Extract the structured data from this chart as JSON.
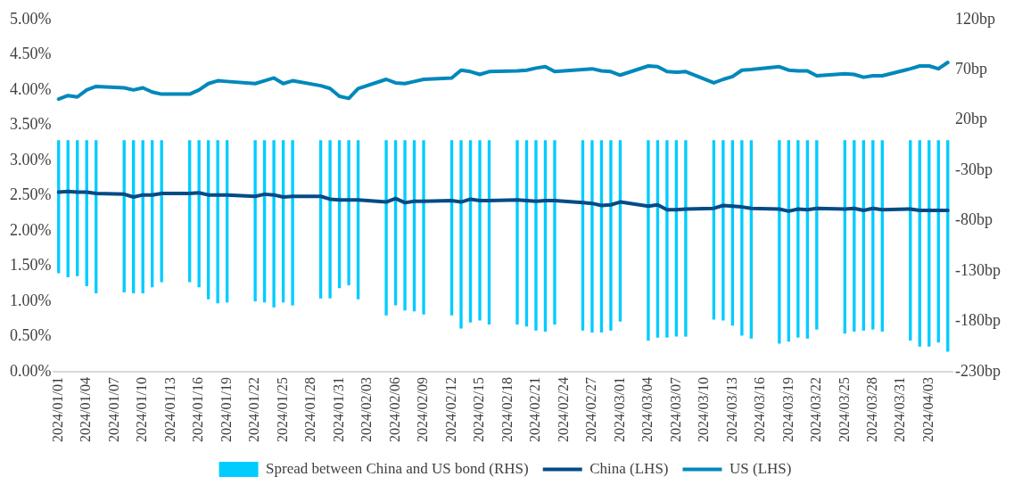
{
  "chart_data": {
    "type": "bar",
    "categories": [
      "2024/01/01",
      null,
      null,
      "2024/01/04",
      null,
      null,
      "2024/01/07",
      null,
      null,
      "2024/01/10",
      null,
      null,
      "2024/01/13",
      null,
      null,
      "2024/01/16",
      null,
      null,
      "2024/01/19",
      null,
      null,
      "2024/01/22",
      null,
      null,
      "2024/01/25",
      null,
      null,
      "2024/01/28",
      null,
      null,
      "2024/01/31",
      null,
      null,
      "2024/02/03",
      null,
      null,
      "2024/02/06",
      null,
      null,
      "2024/02/09",
      null,
      null,
      "2024/02/12",
      null,
      null,
      "2024/02/15",
      null,
      null,
      "2024/02/18",
      null,
      null,
      "2024/02/21",
      null,
      null,
      "2024/02/24",
      null,
      null,
      "2024/02/27",
      null,
      null,
      "2024/03/01",
      null,
      null,
      "2024/03/04",
      null,
      null,
      "2024/03/07",
      null,
      null,
      "2024/03/10",
      null,
      null,
      "2024/03/13",
      null,
      null,
      "2024/03/16",
      null,
      null,
      "2024/03/19",
      null,
      null,
      "2024/03/22",
      null,
      null,
      "2024/03/25",
      null,
      null,
      "2024/03/28",
      null,
      null,
      "2024/03/31",
      null,
      null,
      "2024/04/03",
      null,
      null
    ],
    "series": [
      {
        "name": "Spread between China and US bond (RHS)",
        "axis": "y2",
        "color": "#00ccff",
        "values": [
          -132,
          -136,
          -135,
          -145,
          -152,
          null,
          null,
          -151,
          -152,
          -152,
          -146,
          -141,
          null,
          null,
          -141,
          -146,
          -158,
          -162,
          -161,
          null,
          null,
          -160,
          -161,
          -166,
          -161,
          -164,
          null,
          null,
          -157,
          -157,
          -147,
          -144,
          -158,
          null,
          null,
          -174,
          -164,
          -169,
          -170,
          -173,
          null,
          null,
          -174,
          -187,
          -181,
          -179,
          -183,
          null,
          null,
          -183,
          -185,
          -189,
          -190,
          -183,
          null,
          null,
          -189,
          -191,
          -191,
          -189,
          -180,
          null,
          null,
          -199,
          -196,
          -196,
          -195,
          -195,
          null,
          null,
          -178,
          -179,
          -184,
          -194,
          -197,
          null,
          null,
          -202,
          -200,
          -196,
          -197,
          -188,
          null,
          null,
          -192,
          -190,
          -189,
          -188,
          -190,
          null,
          null,
          -199,
          -205,
          -205,
          -201,
          -210
        ]
      },
      {
        "name": "China (LHS)",
        "type": "line",
        "color": "#004b87",
        "values": [
          2.55,
          2.56,
          2.55,
          2.55,
          2.53,
          null,
          null,
          2.52,
          2.48,
          2.51,
          2.51,
          2.53,
          null,
          null,
          2.53,
          2.54,
          2.51,
          2.51,
          2.51,
          null,
          null,
          2.49,
          2.52,
          2.51,
          2.48,
          2.49,
          null,
          null,
          2.49,
          2.45,
          2.44,
          2.44,
          2.44,
          null,
          null,
          2.41,
          2.46,
          2.4,
          2.42,
          2.42,
          null,
          null,
          2.43,
          2.41,
          2.45,
          2.43,
          2.43,
          null,
          null,
          2.44,
          2.43,
          2.42,
          2.43,
          2.43,
          null,
          null,
          2.4,
          2.39,
          2.36,
          2.37,
          2.41,
          null,
          null,
          2.35,
          2.37,
          2.3,
          2.3,
          2.31,
          null,
          null,
          2.32,
          2.36,
          2.35,
          2.34,
          2.32,
          null,
          null,
          2.31,
          2.28,
          2.31,
          2.3,
          2.32,
          null,
          null,
          2.31,
          2.32,
          2.29,
          2.32,
          2.3,
          null,
          null,
          2.31,
          2.29,
          2.29,
          2.29,
          2.29
        ]
      },
      {
        "name": "US (LHS)",
        "type": "line",
        "color": "#0088bb",
        "values": [
          3.87,
          3.92,
          3.9,
          4.0,
          4.05,
          null,
          null,
          4.03,
          4.0,
          4.03,
          3.97,
          3.94,
          null,
          null,
          3.94,
          4.0,
          4.09,
          4.13,
          4.12,
          null,
          null,
          4.09,
          4.13,
          4.17,
          4.09,
          4.13,
          null,
          null,
          4.06,
          4.02,
          3.91,
          3.88,
          4.02,
          null,
          null,
          4.15,
          4.1,
          4.09,
          4.12,
          4.15,
          null,
          null,
          4.17,
          4.28,
          4.26,
          4.22,
          4.26,
          null,
          null,
          4.27,
          4.28,
          4.31,
          4.33,
          4.26,
          null,
          null,
          4.29,
          4.3,
          4.27,
          4.26,
          4.21,
          null,
          null,
          4.34,
          4.33,
          4.26,
          4.25,
          4.26,
          null,
          null,
          4.1,
          4.15,
          4.19,
          4.28,
          4.29,
          null,
          null,
          4.33,
          4.28,
          4.27,
          4.27,
          4.2,
          null,
          null,
          4.23,
          4.22,
          4.18,
          4.2,
          4.2,
          null,
          null,
          4.3,
          4.34,
          4.34,
          4.3,
          4.39
        ]
      }
    ],
    "ylim": [
      0,
      5
    ],
    "yticks": [
      {
        "value": 0,
        "label": "0.00%"
      },
      {
        "value": 0.5,
        "label": "0.50%"
      },
      {
        "value": 1,
        "label": "1.00%"
      },
      {
        "value": 1.5,
        "label": "1.50%"
      },
      {
        "value": 2,
        "label": "2.00%"
      },
      {
        "value": 2.5,
        "label": "2.50%"
      },
      {
        "value": 3,
        "label": "3.00%"
      },
      {
        "value": 3.5,
        "label": "3.50%"
      },
      {
        "value": 4,
        "label": "4.00%"
      },
      {
        "value": 4.5,
        "label": "4.50%"
      },
      {
        "value": 5,
        "label": "5.00%"
      }
    ],
    "y2lim": [
      -230,
      120
    ],
    "y2ticks": [
      {
        "value": -230,
        "label": "-230bp"
      },
      {
        "value": -180,
        "label": "-180bp"
      },
      {
        "value": -130,
        "label": "-130bp"
      },
      {
        "value": -80,
        "label": "-80bp"
      },
      {
        "value": -30,
        "label": "-30bp"
      },
      {
        "value": 20,
        "label": "20bp"
      },
      {
        "value": 70,
        "label": "70bp"
      },
      {
        "value": 120,
        "label": "120bp"
      }
    ],
    "grid": false,
    "legend": "bottom",
    "marker": "none"
  }
}
